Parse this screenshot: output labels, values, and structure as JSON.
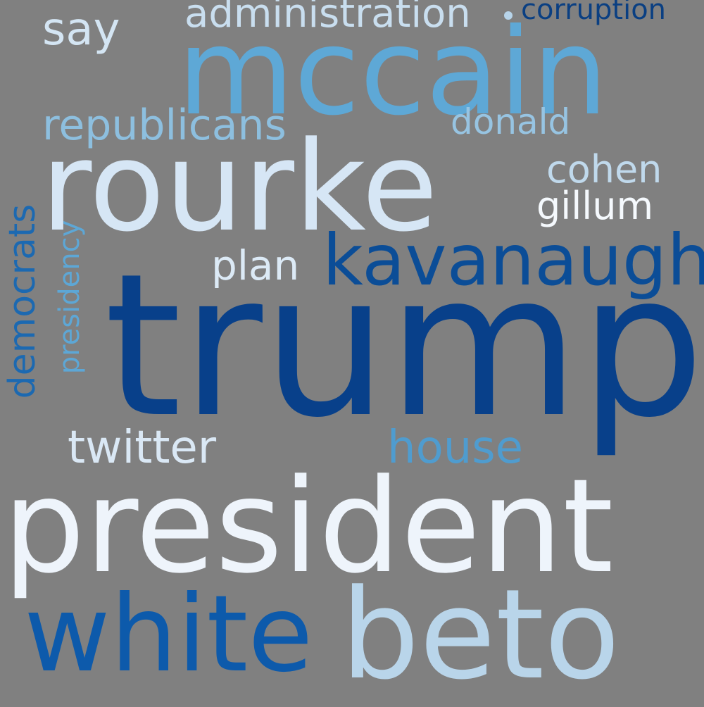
{
  "cloud": {
    "background_color": "#808080",
    "words": {
      "trump": {
        "text": "trump",
        "color": "#08408a"
      },
      "president": {
        "text": "president",
        "color": "#eef4fb"
      },
      "rourke": {
        "text": "rourke",
        "color": "#d6e6f5"
      },
      "beto": {
        "text": "beto",
        "color": "#b9d5ea"
      },
      "mccain": {
        "text": "mccain",
        "color": "#5ea8d6"
      },
      "white": {
        "text": "white",
        "color": "#0d5aab"
      },
      "kavanaugh": {
        "text": "kavanaugh",
        "color": "#0b4d97"
      },
      "republicans": {
        "text": "republicans",
        "color": "#8dbfdf"
      },
      "administration": {
        "text": "administration",
        "color": "#c9deef"
      },
      "say": {
        "text": "say",
        "color": "#d4e5f3"
      },
      "corruption": {
        "text": "corruption",
        "color": "#0a3f82"
      },
      "donald": {
        "text": "donald",
        "color": "#97c4e2"
      },
      "cohen": {
        "text": "cohen",
        "color": "#c0d9ec"
      },
      "gillum": {
        "text": "gillum",
        "color": "#f5f9fd"
      },
      "plan": {
        "text": "plan",
        "color": "#dceaf6"
      },
      "democrats": {
        "text": "democrats",
        "color": "#1c69b1"
      },
      "presidency": {
        "text": "presidency",
        "color": "#5da7d6"
      },
      "twitter": {
        "text": "twitter",
        "color": "#dae8f5"
      },
      "house": {
        "text": "house",
        "color": "#4f9ccf"
      }
    }
  }
}
